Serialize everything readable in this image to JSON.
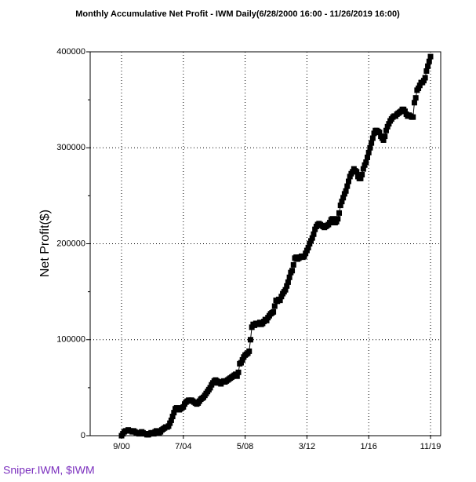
{
  "chart_data": {
    "type": "line",
    "title": "Monthly Accumulative Net Profit - IWM Daily(6/28/2000 16:00 - 11/26/2019 16:00)",
    "y_label": "Net Profit($)",
    "footnote": "Sniper.IWM, $IWM",
    "categories": [
      "9/00",
      null,
      null,
      null,
      null,
      null,
      null,
      null,
      null,
      null,
      null,
      null,
      null,
      null,
      null,
      null,
      null,
      null,
      null,
      null,
      null,
      null,
      null,
      null,
      null,
      null,
      null,
      null,
      null,
      null,
      null,
      null,
      null,
      null,
      null,
      null,
      null,
      null,
      null,
      null,
      null,
      null,
      null,
      null,
      null,
      null,
      "7/04",
      null,
      null,
      null,
      null,
      null,
      null,
      null,
      null,
      null,
      null,
      null,
      null,
      null,
      null,
      null,
      null,
      null,
      null,
      null,
      null,
      null,
      null,
      null,
      null,
      null,
      null,
      null,
      null,
      null,
      null,
      null,
      null,
      null,
      null,
      null,
      null,
      null,
      null,
      null,
      null,
      null,
      null,
      null,
      null,
      null,
      "5/08",
      null,
      null,
      null,
      null,
      null,
      null,
      null,
      null,
      null,
      null,
      null,
      null,
      null,
      null,
      null,
      null,
      null,
      null,
      null,
      null,
      null,
      null,
      null,
      null,
      null,
      null,
      null,
      null,
      null,
      null,
      null,
      null,
      null,
      null,
      null,
      null,
      null,
      null,
      null,
      null,
      null,
      null,
      null,
      null,
      null,
      "3/12",
      null,
      null,
      null,
      null,
      null,
      null,
      null,
      null,
      null,
      null,
      null,
      null,
      null,
      null,
      null,
      null,
      null,
      null,
      null,
      null,
      null,
      null,
      null,
      null,
      null,
      null,
      null,
      null,
      null,
      null,
      null,
      null,
      null,
      null,
      null,
      null,
      null,
      null,
      null,
      null,
      null,
      null,
      null,
      null,
      null,
      "1/16",
      null,
      null,
      null,
      null,
      null,
      null,
      null,
      null,
      null,
      null,
      null,
      null,
      null,
      null,
      null,
      null,
      null,
      null,
      null,
      null,
      null,
      null,
      null,
      null,
      null,
      null,
      null,
      null,
      null,
      null,
      null,
      null,
      null,
      null,
      null,
      null,
      null,
      null,
      null,
      null,
      null,
      null,
      null,
      null,
      null,
      "11/19"
    ],
    "values": [
      0,
      2000,
      4000,
      5000,
      5000,
      6000,
      5000,
      5000,
      4000,
      5000,
      4000,
      3000,
      3000,
      2000,
      3000,
      4000,
      3000,
      2000,
      2000,
      1000,
      1000,
      2000,
      3000,
      3000,
      2000,
      4000,
      5000,
      4000,
      3000,
      4000,
      6000,
      7000,
      8000,
      9000,
      9000,
      10000,
      13000,
      16000,
      20000,
      24000,
      28000,
      29000,
      28000,
      27000,
      28000,
      29000,
      30000,
      33000,
      35000,
      36000,
      37000,
      36000,
      37000,
      36000,
      35000,
      34000,
      33000,
      34000,
      36000,
      38000,
      39000,
      40000,
      42000,
      44000,
      46000,
      48000,
      50000,
      53000,
      55000,
      57000,
      58000,
      57000,
      55000,
      55000,
      54000,
      56000,
      57000,
      56000,
      57000,
      58000,
      59000,
      60000,
      61000,
      62000,
      63000,
      64000,
      62000,
      66000,
      75000,
      76000,
      79000,
      82000,
      84000,
      85000,
      86000,
      88000,
      100000,
      113000,
      116000,
      115000,
      117000,
      116000,
      117000,
      118000,
      116000,
      117000,
      119000,
      121000,
      120000,
      123000,
      125000,
      127000,
      128000,
      129000,
      135000,
      141000,
      140000,
      142000,
      141000,
      145000,
      148000,
      150000,
      152000,
      156000,
      160000,
      165000,
      170000,
      172000,
      178000,
      185000,
      186000,
      184000,
      185000,
      186000,
      187000,
      186000,
      187000,
      190000,
      193000,
      196000,
      200000,
      203000,
      206000,
      210000,
      215000,
      218000,
      220000,
      221000,
      220000,
      219000,
      218000,
      217000,
      218000,
      219000,
      220000,
      222000,
      225000,
      226000,
      224000,
      222000,
      223000,
      226000,
      232000,
      240000,
      244000,
      248000,
      252000,
      255000,
      260000,
      265000,
      270000,
      273000,
      275000,
      278000,
      276000,
      275000,
      270000,
      268000,
      268000,
      272000,
      278000,
      282000,
      285000,
      290000,
      295000,
      300000,
      305000,
      310000,
      315000,
      318000,
      318000,
      317000,
      316000,
      312000,
      310000,
      308000,
      312000,
      318000,
      322000,
      325000,
      328000,
      330000,
      332000,
      333000,
      333000,
      335000,
      336000,
      337000,
      338000,
      340000,
      340000,
      338000,
      335000,
      333000,
      334000,
      333000,
      332000,
      332000,
      347000,
      352000,
      360000,
      362000,
      365000,
      368000,
      368000,
      370000,
      373000,
      380000,
      385000,
      390000,
      395000
    ],
    "color": "#000000",
    "ylim": [
      0,
      400000
    ],
    "yticks": [
      0,
      100000,
      200000,
      300000,
      400000
    ],
    "y_minor_ticks": [
      50000,
      150000,
      250000,
      350000
    ],
    "grid": true
  }
}
